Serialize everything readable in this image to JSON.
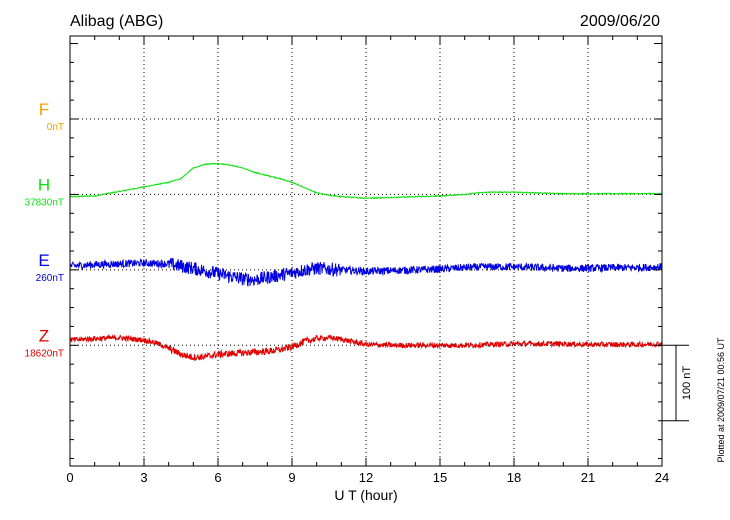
{
  "header": {
    "station": "Alibag (ABG)",
    "date": "2009/06/20"
  },
  "footer": {
    "plotted_at": "Plotted at 2009/07/21 00:56 UT"
  },
  "chart_data": {
    "type": "line",
    "title": "Alibag (ABG)",
    "date": "2009/06/20",
    "xlabel": "U T (hour)",
    "xlim": [
      0,
      24
    ],
    "x_ticks": [
      0,
      3,
      6,
      9,
      12,
      15,
      18,
      21,
      24
    ],
    "x_tick_labels": [
      "0",
      "3",
      "6",
      "9",
      "12",
      "15",
      "18",
      "21",
      "24"
    ],
    "y_unit": "nT",
    "y_range_nT": [
      -110,
      460
    ],
    "scale_bar": {
      "label": "100 nT",
      "value_nT": 100
    },
    "series": [
      {
        "name": "F",
        "baseline_label": "0nT",
        "color": "#f0a000",
        "offset_nT": 350,
        "x": [],
        "y": []
      },
      {
        "name": "H",
        "baseline_label": "37830nT",
        "color": "#10e010",
        "offset_nT": 250,
        "noise_nT": 0.6,
        "x": [
          0,
          1,
          2,
          3,
          4,
          4.5,
          5,
          5.5,
          6,
          6.5,
          7,
          7.5,
          8,
          8.5,
          9,
          9.5,
          10,
          10.5,
          11,
          11.5,
          12,
          13,
          14,
          15,
          16,
          16.5,
          17,
          17.5,
          18,
          19,
          20,
          21,
          22,
          23,
          24
        ],
        "y": [
          -3,
          -2,
          4,
          10,
          16,
          21,
          35,
          40,
          41,
          39,
          35,
          29,
          25,
          21,
          16,
          9,
          2,
          -1,
          -3,
          -4,
          -5,
          -4,
          -3,
          -2,
          0,
          2,
          3,
          3,
          3,
          2,
          1,
          1,
          1,
          1,
          1
        ]
      },
      {
        "name": "E",
        "baseline_label": "260nT",
        "color": "#0000e0",
        "offset_nT": 150,
        "noise_nT": 5,
        "x": [
          0,
          1,
          2,
          3,
          4,
          5,
          6,
          7,
          7.5,
          8,
          9,
          9.5,
          10,
          11,
          12,
          13,
          14,
          15,
          16,
          17,
          18,
          19,
          20,
          21,
          22,
          23,
          24
        ],
        "y": [
          5,
          7,
          8,
          9,
          8,
          2,
          -5,
          -12,
          -13,
          -10,
          -4,
          0,
          2,
          0,
          -2,
          -1,
          0,
          1,
          3,
          4,
          4,
          3,
          2,
          2,
          3,
          3,
          4
        ]
      },
      {
        "name": "Z",
        "baseline_label": "18620nT",
        "color": "#e00000",
        "offset_nT": 50,
        "noise_nT": 3.5,
        "x": [
          0,
          1,
          2,
          3,
          3.5,
          4,
          4.5,
          5,
          5.5,
          6,
          7,
          8,
          8.5,
          9,
          9.5,
          10,
          10.5,
          11,
          12,
          13,
          14,
          15,
          16,
          17,
          18,
          19,
          20,
          21,
          22,
          23,
          24
        ],
        "y": [
          7,
          9,
          10,
          7,
          3,
          -4,
          -12,
          -16,
          -15,
          -12,
          -10,
          -8,
          -6,
          -2,
          5,
          9,
          10,
          8,
          1,
          0,
          0,
          0,
          0,
          1,
          2,
          2,
          2,
          1,
          1,
          1,
          2
        ]
      }
    ]
  }
}
